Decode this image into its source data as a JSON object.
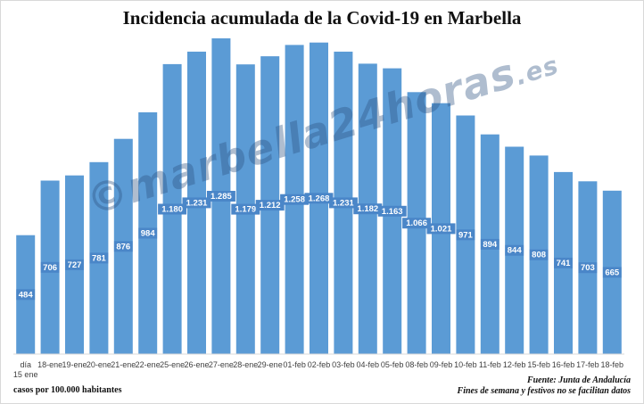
{
  "watermark": {
    "text": "©marbella24horas",
    "suffix": ".es"
  },
  "footnotes": {
    "units": "casos por 100.000 habitantes",
    "source": "Fuente: Junta de Andalucía",
    "note": "Fines de semana y festivos no se facilitan datos"
  },
  "colors": {
    "bar": "#5b9bd5",
    "label_bg": "#4a86c8",
    "label_text": "#ffffff"
  },
  "chart_data": {
    "type": "bar",
    "title": "Incidencia acumulada de la Covid-19 en Marbella",
    "categories": [
      "día 15 ene",
      "18-ene",
      "19-ene",
      "20-ene",
      "21-ene",
      "22-ene",
      "25-ene",
      "26-ene",
      "27-ene",
      "28-ene",
      "29-ene",
      "01-feb",
      "02-feb",
      "03-feb",
      "04-feb",
      "05-feb",
      "08-feb",
      "09-feb",
      "10-feb",
      "11-feb",
      "12-feb",
      "15-feb",
      "16-feb",
      "17-feb",
      "18-feb"
    ],
    "values": [
      484,
      706,
      727,
      781,
      876,
      984,
      1180,
      1231,
      1285,
      1179,
      1212,
      1258,
      1268,
      1231,
      1182,
      1163,
      1066,
      1021,
      971,
      894,
      844,
      808,
      741,
      703,
      665
    ],
    "data_labels": [
      "484",
      "706",
      "727",
      "781",
      "876",
      "984",
      "1.180",
      "1.231",
      "1.285",
      "1.179",
      "1.212",
      "1.258",
      "1.268",
      "1.231",
      "1.182",
      "1.163",
      "1.066",
      "1.021",
      "971",
      "894",
      "844",
      "808",
      "741",
      "703",
      "665"
    ],
    "ylim": [
      0,
      1285
    ],
    "grid": false,
    "legend": "none"
  }
}
